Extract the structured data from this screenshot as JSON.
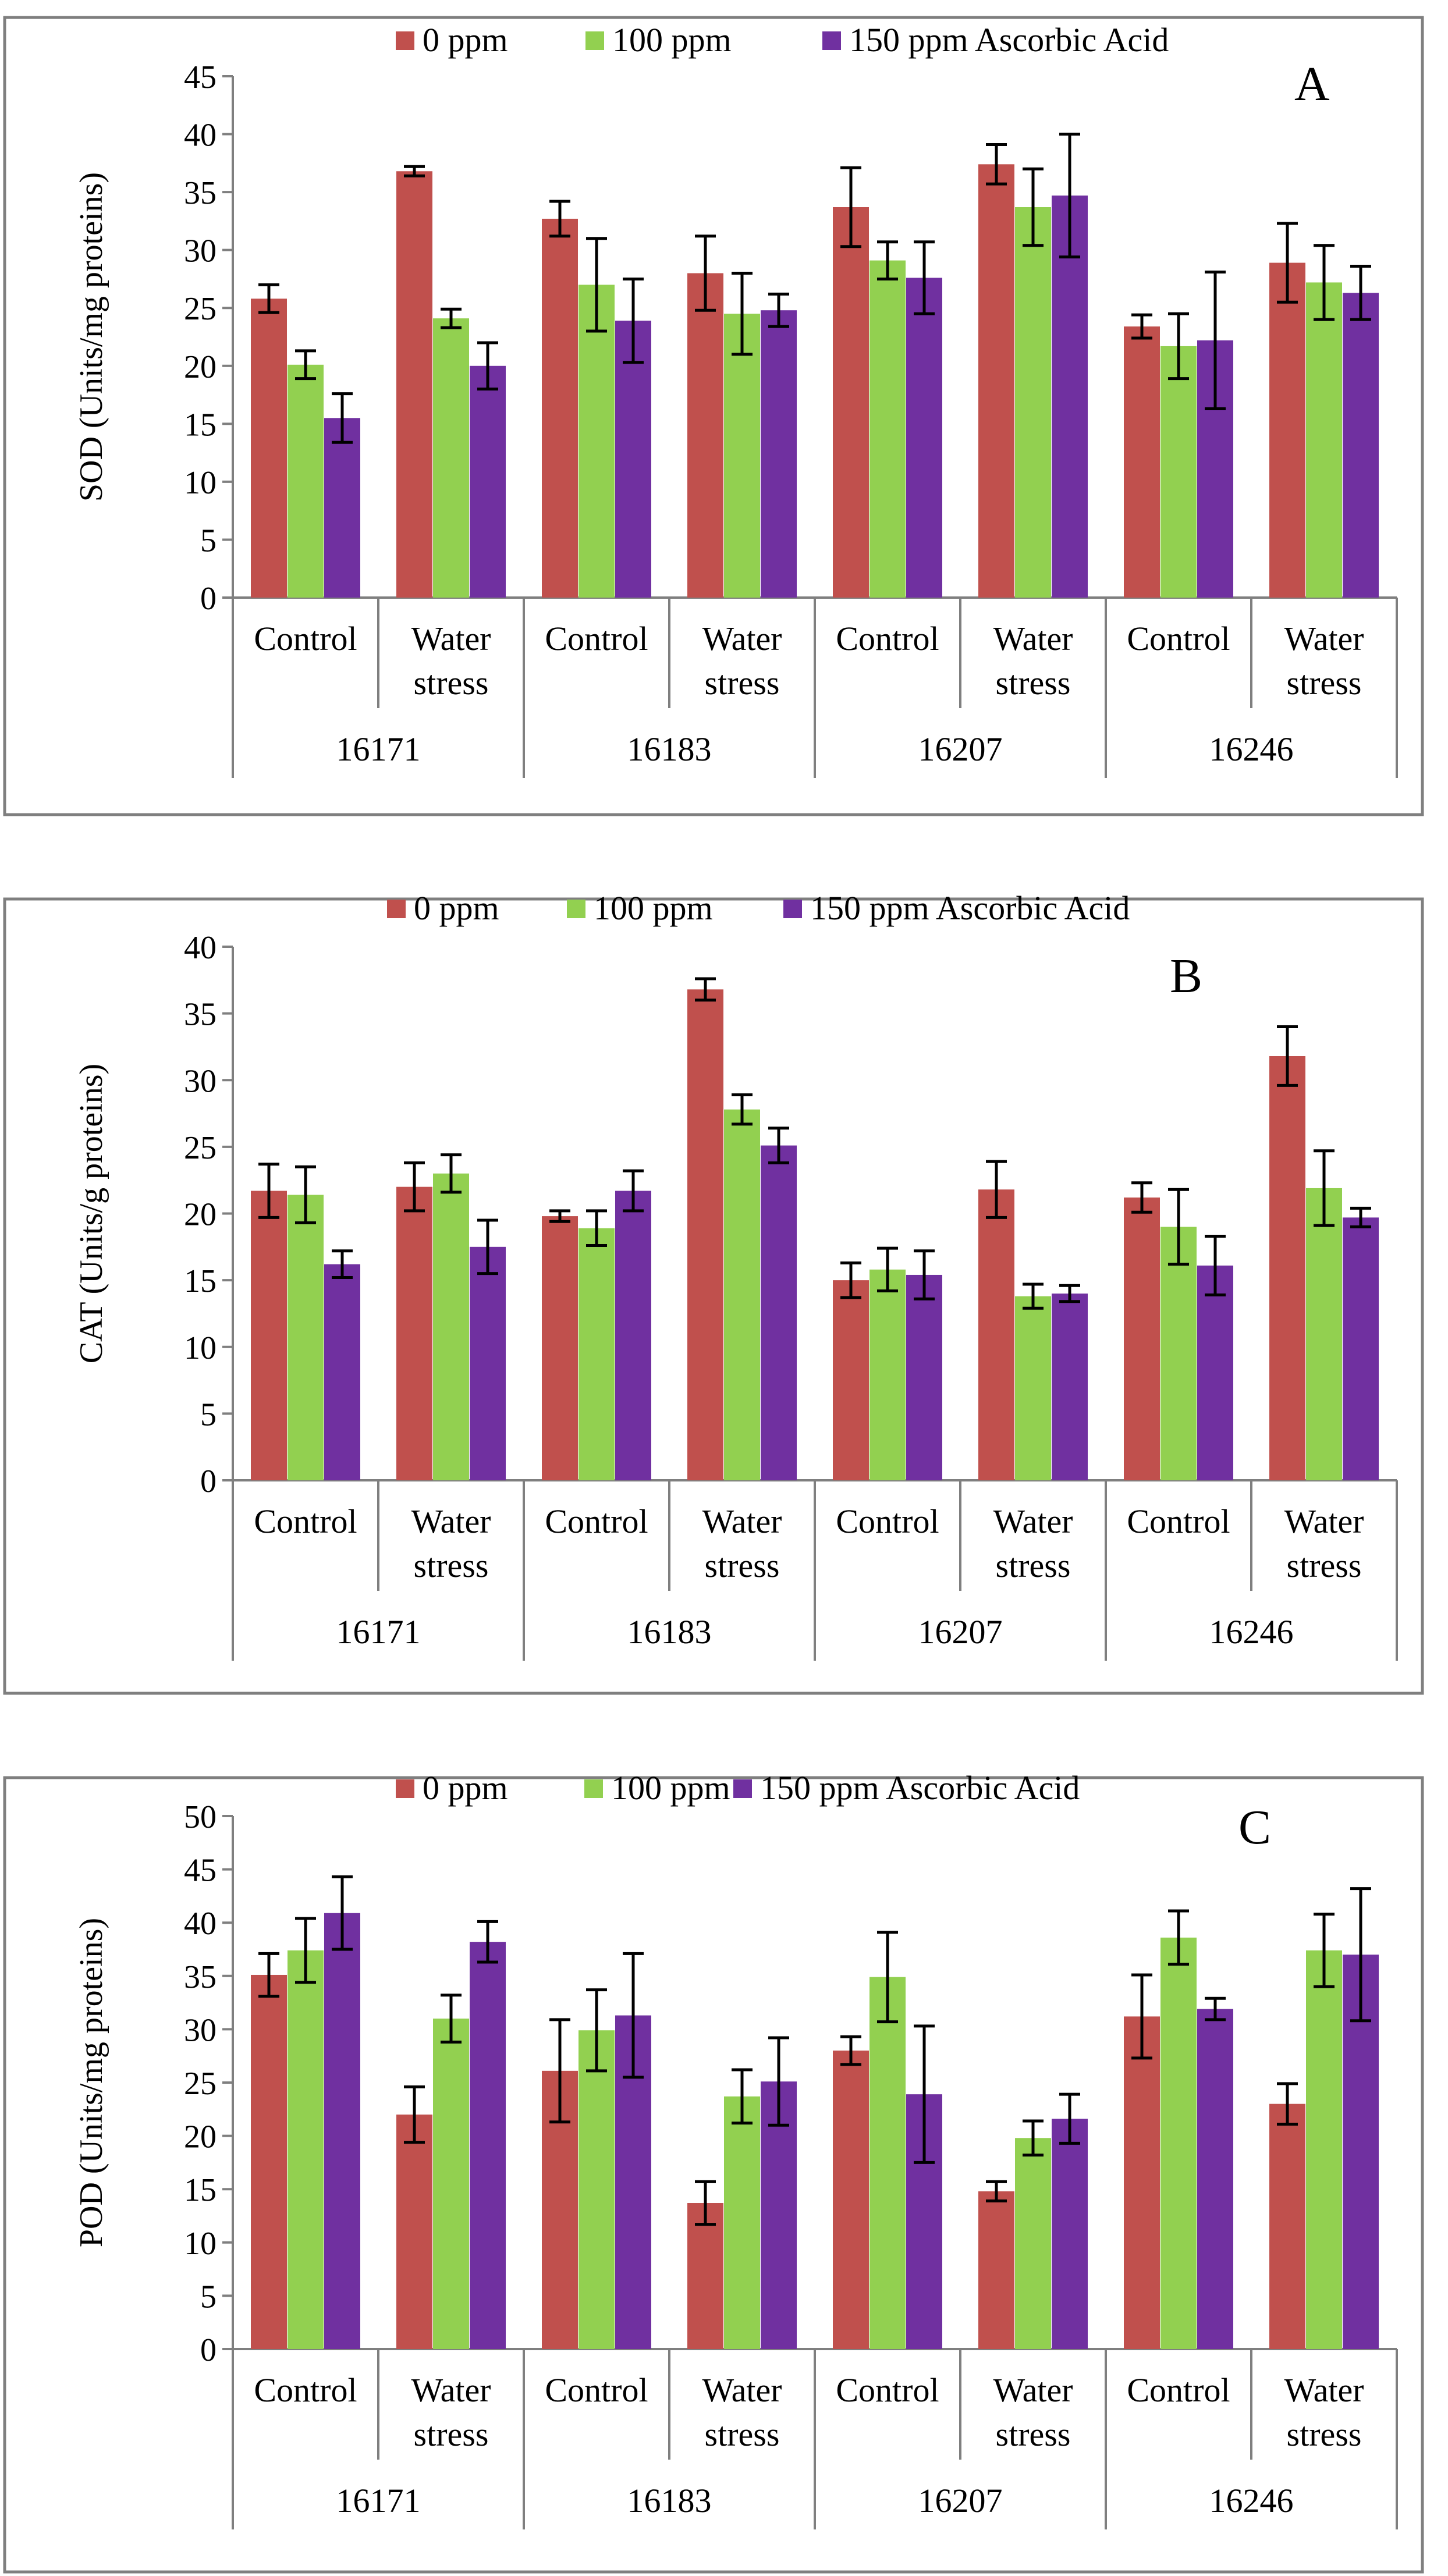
{
  "colors": {
    "series": [
      "#c0504d",
      "#92d050",
      "#7030a0"
    ],
    "frame": "#7f7f7f",
    "axis": "#7f7f7f"
  },
  "chart_data": [
    {
      "type": "bar",
      "panel": "A",
      "ylabel": "SOD (Units/mg proteins)",
      "ylim": [
        0,
        45
      ],
      "yticks": [
        0,
        5,
        10,
        15,
        20,
        25,
        30,
        35,
        40,
        45
      ],
      "legend": [
        "0 ppm",
        "100 ppm",
        "150 ppm Ascorbic Acid"
      ],
      "groups": [
        "16171",
        "16183",
        "16207",
        "16246"
      ],
      "categories": [
        [
          "Control"
        ],
        [
          "Water",
          "stress"
        ],
        [
          "Control"
        ],
        [
          "Water",
          "stress"
        ],
        [
          "Control"
        ],
        [
          "Water",
          "stress"
        ],
        [
          "Control"
        ],
        [
          "Water",
          "stress"
        ]
      ],
      "series": [
        {
          "name": "0 ppm",
          "values": [
            25.8,
            36.8,
            32.7,
            28.0,
            33.7,
            37.4,
            23.4,
            28.9
          ],
          "errors": [
            1.2,
            0.4,
            1.5,
            3.2,
            3.4,
            1.7,
            1.0,
            3.4
          ]
        },
        {
          "name": "100 ppm",
          "values": [
            20.1,
            24.1,
            27.0,
            24.5,
            29.1,
            33.7,
            21.7,
            27.2
          ],
          "errors": [
            1.2,
            0.8,
            4.0,
            3.5,
            1.6,
            3.3,
            2.8,
            3.2
          ]
        },
        {
          "name": "150 ppm Ascorbic Acid",
          "values": [
            15.5,
            20.0,
            23.9,
            24.8,
            27.6,
            34.7,
            22.2,
            26.3
          ],
          "errors": [
            2.1,
            2.0,
            3.6,
            1.4,
            3.1,
            5.3,
            5.9,
            2.3
          ]
        }
      ]
    },
    {
      "type": "bar",
      "panel": "B",
      "ylabel": "CAT (Units/g proteins)",
      "ylim": [
        0,
        40
      ],
      "yticks": [
        0,
        5,
        10,
        15,
        20,
        25,
        30,
        35,
        40
      ],
      "legend": [
        "0 ppm",
        "100 ppm",
        "150 ppm Ascorbic Acid"
      ],
      "groups": [
        "16171",
        "16183",
        "16207",
        "16246"
      ],
      "categories": [
        [
          "Control"
        ],
        [
          "Water",
          "stress"
        ],
        [
          "Control"
        ],
        [
          "Water",
          "stress"
        ],
        [
          "Control"
        ],
        [
          "Water",
          "stress"
        ],
        [
          "Control"
        ],
        [
          "Water",
          "stress"
        ]
      ],
      "series": [
        {
          "name": "0 ppm",
          "values": [
            21.7,
            22.0,
            19.8,
            36.8,
            15.0,
            21.8,
            21.2,
            31.8
          ],
          "errors": [
            2.0,
            1.8,
            0.4,
            0.8,
            1.3,
            2.1,
            1.1,
            2.2
          ]
        },
        {
          "name": "100 ppm",
          "values": [
            21.4,
            23.0,
            18.9,
            27.8,
            15.8,
            13.8,
            19.0,
            21.9
          ],
          "errors": [
            2.1,
            1.4,
            1.3,
            1.1,
            1.6,
            0.9,
            2.8,
            2.8
          ]
        },
        {
          "name": "150 ppm Ascorbic Acid",
          "values": [
            16.2,
            17.5,
            21.7,
            25.1,
            15.4,
            14.0,
            16.1,
            19.7
          ],
          "errors": [
            1.0,
            2.0,
            1.5,
            1.3,
            1.8,
            0.6,
            2.2,
            0.7
          ]
        }
      ]
    },
    {
      "type": "bar",
      "panel": "C",
      "ylabel": "POD (Units/mg proteins)",
      "ylim": [
        0,
        50
      ],
      "yticks": [
        0,
        5,
        10,
        15,
        20,
        25,
        30,
        35,
        40,
        45,
        50
      ],
      "legend": [
        "0 ppm",
        "100 ppm",
        "150 ppm Ascorbic Acid"
      ],
      "groups": [
        "16171",
        "16183",
        "16207",
        "16246"
      ],
      "categories": [
        [
          "Control"
        ],
        [
          "Water",
          "stress"
        ],
        [
          "Control"
        ],
        [
          "Water",
          "stress"
        ],
        [
          "Control"
        ],
        [
          "Water",
          "stress"
        ],
        [
          "Control"
        ],
        [
          "Water",
          "stress"
        ]
      ],
      "series": [
        {
          "name": "0 ppm",
          "values": [
            35.1,
            22.0,
            26.1,
            13.7,
            28.0,
            14.8,
            31.2,
            23.0
          ],
          "errors": [
            2.0,
            2.6,
            4.8,
            2.0,
            1.3,
            0.9,
            3.9,
            1.9
          ]
        },
        {
          "name": "100 ppm",
          "values": [
            37.4,
            31.0,
            29.9,
            23.7,
            34.9,
            19.8,
            38.6,
            37.4
          ],
          "errors": [
            3.0,
            2.2,
            3.8,
            2.5,
            4.2,
            1.6,
            2.5,
            3.4
          ]
        },
        {
          "name": "150 ppm Ascorbic Acid",
          "values": [
            40.9,
            38.2,
            31.3,
            25.1,
            23.9,
            21.6,
            31.9,
            37.0
          ],
          "errors": [
            3.4,
            1.9,
            5.8,
            4.1,
            6.4,
            2.3,
            1.0,
            6.2
          ]
        }
      ]
    }
  ]
}
